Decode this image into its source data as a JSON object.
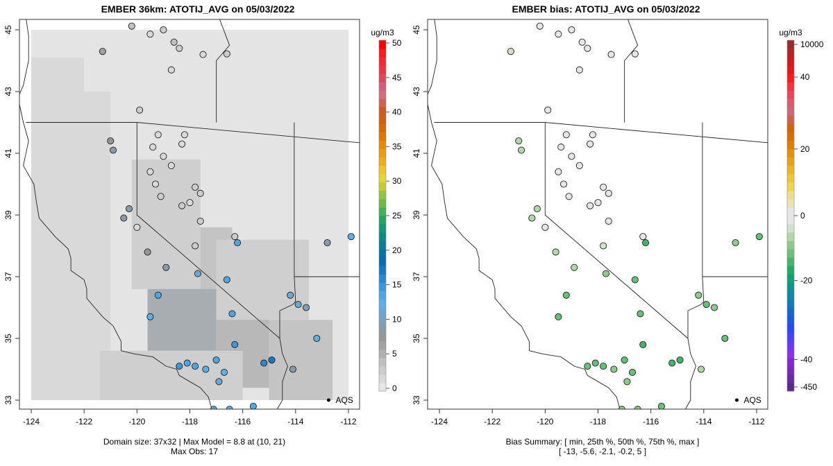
{
  "left_panel": {
    "title": "EMBER 36km: ATOTIJ_AVG on 05/03/2022",
    "footer_line1": "Domain size: 37x32 | Max Model = 8.8 at (10, 21)",
    "footer_line2": "Max Obs: 17",
    "colorbar": {
      "unit": "ug/m3",
      "ticks": [
        "0",
        "5",
        "10",
        "15",
        "20",
        "25",
        "30",
        "35",
        "40",
        "45",
        "50"
      ],
      "range": [
        0,
        50
      ],
      "colors": [
        "#e6e6e6",
        "#d9d9d9",
        "#cccccc",
        "#bfbfbf",
        "#b0b0b0",
        "#a3a3a3",
        "#969696",
        "#8a9aa8",
        "#7fa0bc",
        "#6aa8d4",
        "#5cb0e6",
        "#4ea6e2",
        "#3c98d8",
        "#2a88cc",
        "#1c78be",
        "#0e6aae",
        "#0a72a0",
        "#0a7e92",
        "#0e8a84",
        "#169676",
        "#22a266",
        "#44ae58",
        "#6cba4c",
        "#96c442",
        "#c0cc3a",
        "#e4d436",
        "#ecc42e",
        "#eab020",
        "#e69e12",
        "#e28c08",
        "#dc7a04",
        "#d66a06",
        "#d0600e",
        "#cc5a24",
        "#cc6450",
        "#d06e80",
        "#d06080",
        "#dc4860",
        "#e83848",
        "#f22a34",
        "#fb1a1c",
        "#ff0000"
      ]
    },
    "axis": {
      "x_ticks": [
        "-124",
        "-122",
        "-120",
        "-118",
        "-116",
        "-114",
        "-112"
      ],
      "y_ticks": [
        "33",
        "35",
        "37",
        "39",
        "41",
        "43",
        "45"
      ]
    },
    "aqs_label": "AQS"
  },
  "right_panel": {
    "title": "EMBER bias: ATOTIJ_AVG on 05/03/2022",
    "footer_line1": "Bias Summary: [ min, 25th %, 50th %, 75th %, max ]",
    "footer_line2": "[ -13,   -5.6,   -2.1,   -0.2,   5 ]",
    "colorbar": {
      "unit": "ug/m3",
      "ticks": [
        "-450",
        "-40",
        "-20",
        "0",
        "20",
        "40",
        "10000"
      ],
      "colors": [
        "#5a2a8a",
        "#6a2aa0",
        "#7a28b8",
        "#8a26d0",
        "#8e30e8",
        "#6a3af2",
        "#4a40f8",
        "#2a48f0",
        "#1a58e0",
        "#1468cc",
        "#107ab8",
        "#0e88a4",
        "#0c9490",
        "#10a07c",
        "#22a868",
        "#44b46c",
        "#66c078",
        "#8ccc88",
        "#b0d8a8",
        "#d0e2cc",
        "#e6e6e6",
        "#e6e6e6",
        "#ece2b0",
        "#eedc90",
        "#f0d448",
        "#eec43a",
        "#eab42a",
        "#e6a21a",
        "#e2900e",
        "#de7e08",
        "#d86e06",
        "#d2640c",
        "#cc6248",
        "#cc6678",
        "#d65c70",
        "#e64858",
        "#f4343c",
        "#fe1a1a",
        "#e41818",
        "#cc1c1c",
        "#b42424",
        "#9a2a2a"
      ]
    },
    "axis": {
      "x_ticks": [
        "-124",
        "-122",
        "-120",
        "-118",
        "-116",
        "-114",
        "-112"
      ],
      "y_ticks": [
        "33",
        "35",
        "37",
        "39",
        "41",
        "43",
        "45"
      ]
    },
    "aqs_label": "AQS"
  },
  "chart_data": {
    "type": "scatter",
    "subtype": "map-station-overlay",
    "xlim": [
      -124.4,
      -111.6
    ],
    "ylim": [
      32.7,
      45.4
    ],
    "xlabel": "",
    "ylabel": "",
    "model_max": 8.8,
    "obs_max": 17,
    "bias_summary": {
      "min": -13,
      "p25": -5.6,
      "p50": -2.1,
      "p75": -0.2,
      "max": 5
    },
    "model_grid_levels": [
      {
        "lon": [
          -124.0,
          -122.0
        ],
        "lat": [
          33.0,
          44.1
        ],
        "value": 1.2
      },
      {
        "lon": [
          -122.0,
          -121.0
        ],
        "lat": [
          33.0,
          43.0
        ],
        "value": 0.5
      },
      {
        "lon": [
          -121.0,
          -120.0
        ],
        "lat": [
          33.0,
          41.0
        ],
        "value": 0.4
      },
      {
        "lon": [
          -124.0,
          -112.0
        ],
        "lat": [
          44.1,
          45.0
        ],
        "value": 0.3
      },
      {
        "lon": [
          -122.0,
          -119.9
        ],
        "lat": [
          43.0,
          44.1
        ],
        "value": 0.2
      },
      {
        "lon": [
          -120.2,
          -117.6
        ],
        "lat": [
          36.6,
          40.8
        ],
        "value": 2.0
      },
      {
        "lon": [
          -117.6,
          -116.4
        ],
        "lat": [
          35.6,
          38.6
        ],
        "value": 3.0
      },
      {
        "lon": [
          -119.6,
          -117.0
        ],
        "lat": [
          34.6,
          36.6
        ],
        "value": 4.6
      },
      {
        "lon": [
          -117.0,
          -115.0
        ],
        "lat": [
          33.4,
          36.0
        ],
        "value": 4.2
      },
      {
        "lon": [
          -115.0,
          -112.6
        ],
        "lat": [
          33.0,
          35.6
        ],
        "value": 3.4
      },
      {
        "lon": [
          -121.4,
          -116.0
        ],
        "lat": [
          33.0,
          34.6
        ],
        "value": 2.0
      },
      {
        "lon": [
          -117.0,
          -113.5
        ],
        "lat": [
          35.6,
          38.2
        ],
        "value": 2.2
      },
      {
        "lon": [
          -116.0,
          -112.6
        ],
        "lat": [
          38.2,
          44.1
        ],
        "value": 0.4
      }
    ],
    "stations": [
      {
        "lon": -120.2,
        "lat": 45.12,
        "obs": 3.5,
        "bias": -0.5
      },
      {
        "lon": -119.5,
        "lat": 44.86,
        "obs": 1.5,
        "bias": 0.0
      },
      {
        "lon": -119.0,
        "lat": 45.0,
        "obs": 2.0,
        "bias": 0.0
      },
      {
        "lon": -118.6,
        "lat": 44.6,
        "obs": 3.5,
        "bias": -0.2
      },
      {
        "lon": -118.4,
        "lat": 44.4,
        "obs": 2.5,
        "bias": 0.0
      },
      {
        "lon": -117.5,
        "lat": 44.2,
        "obs": 1.0,
        "bias": 0.0
      },
      {
        "lon": -118.7,
        "lat": 43.7,
        "obs": 1.0,
        "bias": 0.0
      },
      {
        "lon": -116.6,
        "lat": 44.22,
        "obs": 2.5,
        "bias": 0.0
      },
      {
        "lon": -121.3,
        "lat": 44.3,
        "obs": 5.5,
        "bias": -3.0
      },
      {
        "lon": -119.9,
        "lat": 42.4,
        "obs": 3.0,
        "bias": -0.5
      },
      {
        "lon": -119.2,
        "lat": 41.6,
        "obs": 1.5,
        "bias": 0.0
      },
      {
        "lon": -118.2,
        "lat": 41.6,
        "obs": 1.5,
        "bias": 0.0
      },
      {
        "lon": -121.0,
        "lat": 41.4,
        "obs": 7.5,
        "bias": -5.5
      },
      {
        "lon": -120.9,
        "lat": 41.1,
        "obs": 8.0,
        "bias": -5.0
      },
      {
        "lon": -119.4,
        "lat": 41.2,
        "obs": 1.0,
        "bias": 1.5
      },
      {
        "lon": -119.0,
        "lat": 40.9,
        "obs": 0.8,
        "bias": 1.8
      },
      {
        "lon": -118.7,
        "lat": 40.6,
        "obs": 1.2,
        "bias": 0.5
      },
      {
        "lon": -119.5,
        "lat": 40.4,
        "obs": 1.0,
        "bias": 2.0
      },
      {
        "lon": -119.3,
        "lat": 40.0,
        "obs": 1.5,
        "bias": 0.0
      },
      {
        "lon": -119.1,
        "lat": 39.6,
        "obs": 2.0,
        "bias": 0.0
      },
      {
        "lon": -118.0,
        "lat": 39.4,
        "obs": 1.5,
        "bias": 0.0
      },
      {
        "lon": -117.6,
        "lat": 39.7,
        "obs": 2.0,
        "bias": -0.5
      },
      {
        "lon": -118.3,
        "lat": 39.3,
        "obs": 2.0,
        "bias": 1.5
      },
      {
        "lon": -120.3,
        "lat": 39.2,
        "obs": 9.0,
        "bias": -6.0
      },
      {
        "lon": -120.5,
        "lat": 38.9,
        "obs": 8.5,
        "bias": -5.5
      },
      {
        "lon": -120.0,
        "lat": 38.6,
        "obs": 1.0,
        "bias": 0.0
      },
      {
        "lon": -119.6,
        "lat": 37.8,
        "obs": 7.5,
        "bias": -4.0
      },
      {
        "lon": -118.9,
        "lat": 37.3,
        "obs": 8.5,
        "bias": -5.0
      },
      {
        "lon": -117.7,
        "lat": 37.1,
        "obs": 11.0,
        "bias": -8.0
      },
      {
        "lon": -119.2,
        "lat": 36.4,
        "obs": 13.0,
        "bias": -10.0
      },
      {
        "lon": -119.5,
        "lat": 35.7,
        "obs": 12.0,
        "bias": -9.0
      },
      {
        "lon": -116.6,
        "lat": 36.9,
        "obs": 14.0,
        "bias": -9.0
      },
      {
        "lon": -116.4,
        "lat": 35.8,
        "obs": 13.0,
        "bias": -11.0
      },
      {
        "lon": -116.3,
        "lat": 34.8,
        "obs": 15.0,
        "bias": -12.0
      },
      {
        "lon": -115.2,
        "lat": 34.2,
        "obs": 16.0,
        "bias": -12.0
      },
      {
        "lon": -114.9,
        "lat": 34.3,
        "obs": 17.0,
        "bias": -13.0
      },
      {
        "lon": -113.9,
        "lat": 36.1,
        "obs": 11.0,
        "bias": -9.0
      },
      {
        "lon": -113.6,
        "lat": 36.0,
        "obs": 10.0,
        "bias": -8.0
      },
      {
        "lon": -114.2,
        "lat": 36.4,
        "obs": 11.0,
        "bias": -8.5
      },
      {
        "lon": -112.8,
        "lat": 38.1,
        "obs": 8.0,
        "bias": -7.0
      },
      {
        "lon": -111.9,
        "lat": 38.3,
        "obs": 12.0,
        "bias": -9.0
      },
      {
        "lon": -113.2,
        "lat": 35.0,
        "obs": 12.0,
        "bias": -9.5
      },
      {
        "lon": -114.1,
        "lat": 34.0,
        "obs": 8.0,
        "bias": -6.0
      },
      {
        "lon": -117.6,
        "lat": 38.8,
        "obs": 3.0,
        "bias": 0.0
      },
      {
        "lon": -116.3,
        "lat": 38.3,
        "obs": 2.0,
        "bias": -1.0
      },
      {
        "lon": -116.2,
        "lat": 38.1,
        "obs": 14.0,
        "bias": -12.0
      },
      {
        "lon": -117.8,
        "lat": 39.9,
        "obs": 3.0,
        "bias": -1.0
      },
      {
        "lon": -118.3,
        "lat": 41.3,
        "obs": 1.5,
        "bias": 0.5
      },
      {
        "lon": -117.8,
        "lat": 38.0,
        "obs": 2.5,
        "bias": -1.5
      },
      {
        "lon": -116.7,
        "lat": 33.9,
        "obs": 12.0,
        "bias": -9.0
      },
      {
        "lon": -117.0,
        "lat": 34.3,
        "obs": 13.5,
        "bias": -10.0
      },
      {
        "lon": -118.4,
        "lat": 34.1,
        "obs": 15.0,
        "bias": -11.0
      },
      {
        "lon": -118.1,
        "lat": 34.2,
        "obs": 14.0,
        "bias": -10.5
      },
      {
        "lon": -117.8,
        "lat": 34.1,
        "obs": 13.0,
        "bias": -9.0
      },
      {
        "lon": -117.4,
        "lat": 34.0,
        "obs": 12.5,
        "bias": -8.0
      },
      {
        "lon": -116.9,
        "lat": 33.6,
        "obs": 11.0,
        "bias": -8.0
      },
      {
        "lon": -115.6,
        "lat": 32.8,
        "obs": 14.0,
        "bias": -11.0
      },
      {
        "lon": -116.5,
        "lat": 32.7,
        "obs": 12.0,
        "bias": -8.5
      },
      {
        "lon": -117.1,
        "lat": 32.7,
        "obs": 11.0,
        "bias": -7.5
      }
    ]
  }
}
